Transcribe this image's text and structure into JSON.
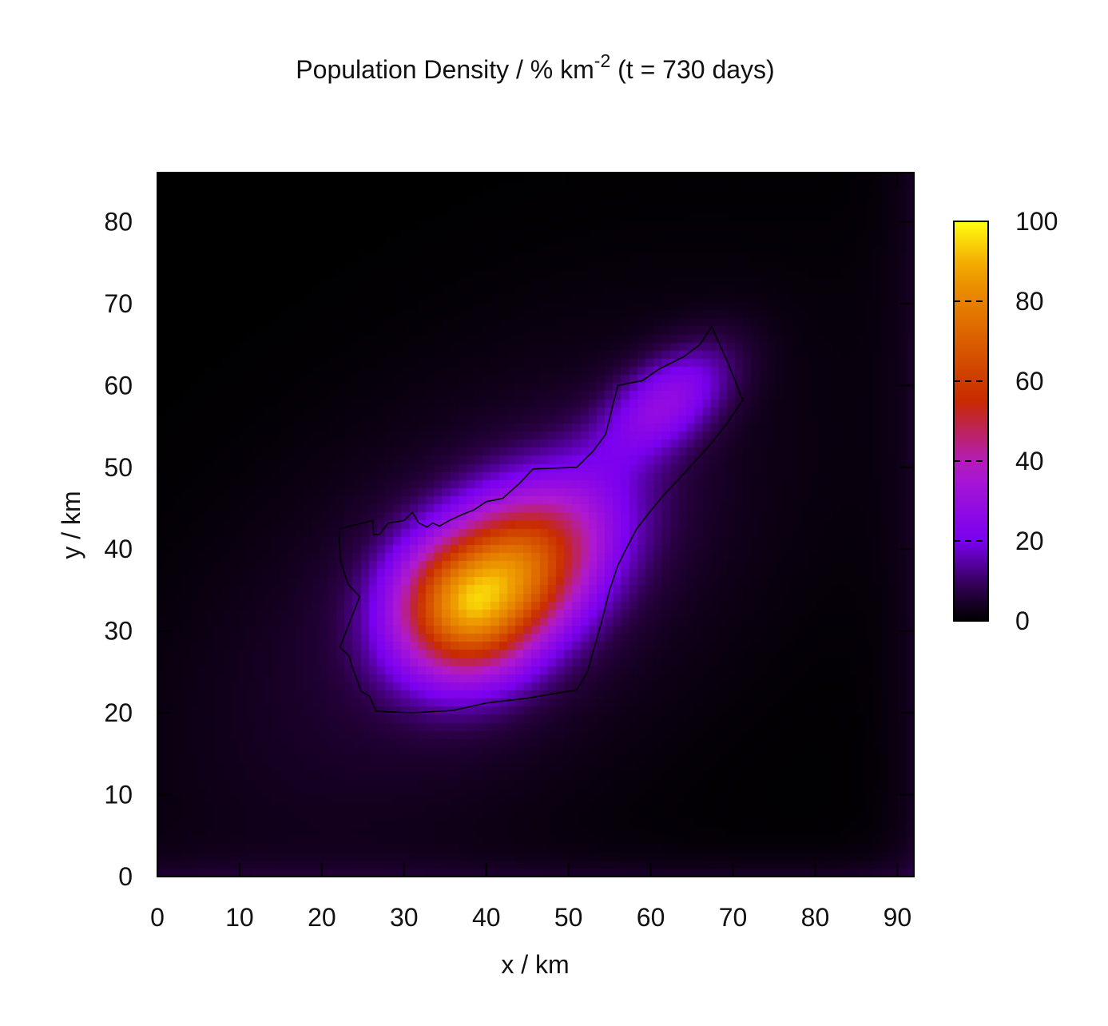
{
  "chart_data": {
    "type": "heatmap",
    "title": {
      "main": "Population Density / % km",
      "superscript": "-2",
      "suffix": " (t = 730 days)"
    },
    "xlabel": "x / km",
    "ylabel": "y / km",
    "xlim": [
      0,
      92
    ],
    "ylim": [
      0,
      86
    ],
    "x_ticks": [
      "0",
      "10",
      "20",
      "30",
      "40",
      "50",
      "60",
      "70",
      "80",
      "90"
    ],
    "y_ticks": [
      "0",
      "10",
      "20",
      "30",
      "40",
      "50",
      "60",
      "70",
      "80"
    ],
    "colorbar": {
      "range": [
        0,
        100
      ],
      "ticks": [
        "0",
        "20",
        "40",
        "60",
        "80",
        "100"
      ],
      "palette": [
        "#000000",
        "#2b0045",
        "#7a00f0",
        "#b01ad0",
        "#c82a00",
        "#e07000",
        "#f0a000",
        "#ffff10"
      ]
    },
    "peak": {
      "x": 39,
      "y": 34,
      "value": 88
    },
    "ridge_axis_deg": 38,
    "boundary_polygon": [
      [
        22.2,
        42.5
      ],
      [
        26.2,
        43.5
      ],
      [
        26.3,
        41.8
      ],
      [
        27,
        41.8
      ],
      [
        28.1,
        43.2
      ],
      [
        30,
        43.5
      ],
      [
        31,
        44.5
      ],
      [
        31.8,
        43.2
      ],
      [
        32.8,
        42.7
      ],
      [
        33.5,
        43.2
      ],
      [
        34.3,
        42.8
      ],
      [
        35.5,
        43.5
      ],
      [
        37,
        44.2
      ],
      [
        38.5,
        44.8
      ],
      [
        40,
        45.8
      ],
      [
        42,
        46.2
      ],
      [
        44,
        48
      ],
      [
        45.7,
        49.8
      ],
      [
        51,
        50
      ],
      [
        53,
        52
      ],
      [
        54.5,
        54
      ],
      [
        55.5,
        58
      ],
      [
        56,
        60
      ],
      [
        57.5,
        60.3
      ],
      [
        59,
        60.6
      ],
      [
        61,
        62
      ],
      [
        64,
        63.5
      ],
      [
        66,
        65
      ],
      [
        67.4,
        67.2
      ],
      [
        69.5,
        62.5
      ],
      [
        71.2,
        58.2
      ],
      [
        69,
        55
      ],
      [
        67,
        52.5
      ],
      [
        64,
        49.2
      ],
      [
        61.5,
        46.5
      ],
      [
        60,
        44.7
      ],
      [
        58.3,
        42.5
      ],
      [
        57,
        40
      ],
      [
        56,
        38
      ],
      [
        55,
        35
      ],
      [
        54,
        31
      ],
      [
        52.3,
        25
      ],
      [
        51,
        22.8
      ],
      [
        45,
        21.8
      ],
      [
        40,
        21.2
      ],
      [
        36,
        20.3
      ],
      [
        31,
        20
      ],
      [
        26.6,
        20.2
      ],
      [
        25.8,
        22
      ],
      [
        24.8,
        22.6
      ],
      [
        23.8,
        25.3
      ],
      [
        23.3,
        27
      ],
      [
        22.2,
        28
      ],
      [
        24.6,
        34.2
      ],
      [
        23.2,
        35.7
      ],
      [
        22.3,
        38.5
      ],
      [
        22.1,
        41
      ]
    ]
  }
}
